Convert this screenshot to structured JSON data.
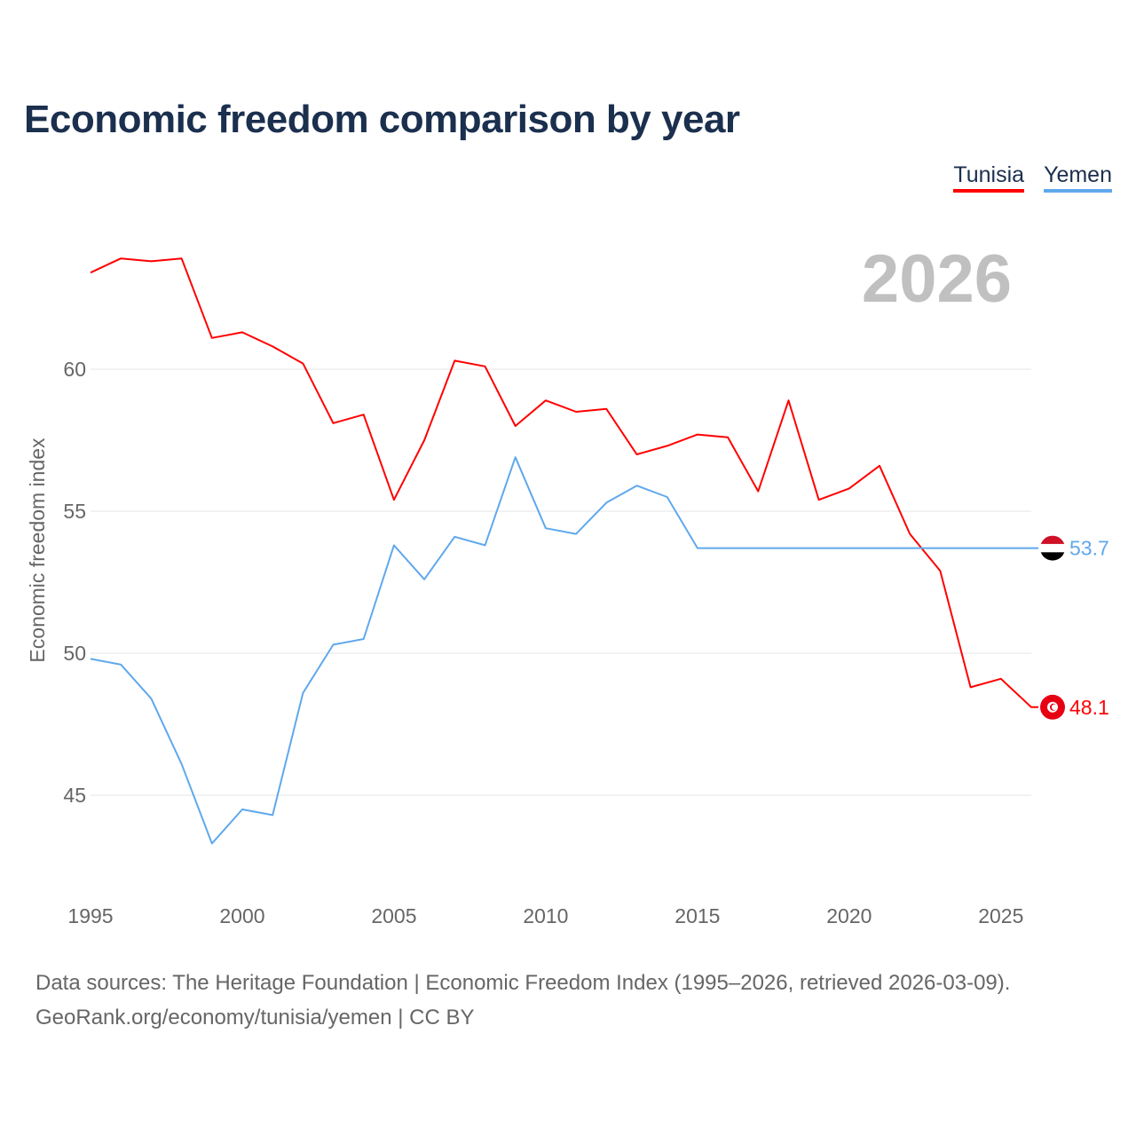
{
  "chart_data": {
    "type": "line",
    "title": "Economic freedom comparison by year",
    "ylabel": "Economic freedom index",
    "xlabel": "",
    "ylim": [
      41.8,
      66.5
    ],
    "xlim": [
      1995,
      2026
    ],
    "yticks": [
      45,
      50,
      55,
      60
    ],
    "xticks": [
      1995,
      2000,
      2005,
      2010,
      2015,
      2020,
      2025
    ],
    "year_watermark": "2026",
    "legend_position": "top-right",
    "x": [
      1995,
      1996,
      1997,
      1998,
      1999,
      2000,
      2001,
      2002,
      2003,
      2004,
      2005,
      2006,
      2007,
      2008,
      2009,
      2010,
      2011,
      2012,
      2013,
      2014,
      2015,
      2016,
      2017,
      2018,
      2019,
      2020,
      2021,
      2022,
      2023,
      2024,
      2025,
      2026
    ],
    "series": [
      {
        "name": "Tunisia",
        "color": "#ff0000",
        "end_label": "48.1",
        "values": [
          63.4,
          63.9,
          63.8,
          63.9,
          61.1,
          61.3,
          60.8,
          60.2,
          58.1,
          58.4,
          55.4,
          57.5,
          60.3,
          60.1,
          58.0,
          58.9,
          58.5,
          58.6,
          57.0,
          57.3,
          57.7,
          57.6,
          55.7,
          58.9,
          55.4,
          55.8,
          56.6,
          54.2,
          52.9,
          48.8,
          49.1,
          48.1
        ]
      },
      {
        "name": "Yemen",
        "color": "#5fa8ec",
        "end_label": "53.7",
        "values": [
          49.8,
          49.6,
          48.4,
          46.1,
          43.3,
          44.5,
          44.3,
          48.6,
          50.3,
          50.5,
          53.8,
          52.6,
          54.1,
          53.8,
          56.9,
          54.4,
          54.2,
          55.3,
          55.9,
          55.5,
          53.7,
          53.7,
          53.7,
          53.7,
          53.7,
          53.7,
          53.7,
          53.7,
          53.7,
          53.7,
          53.7,
          53.7
        ]
      }
    ]
  },
  "source": {
    "line1": "Data sources: The Heritage Foundation | Economic Freedom Index (1995–2026, retrieved 2026-03-09).",
    "line2": "GeoRank.org/economy/tunisia/yemen | CC BY"
  }
}
